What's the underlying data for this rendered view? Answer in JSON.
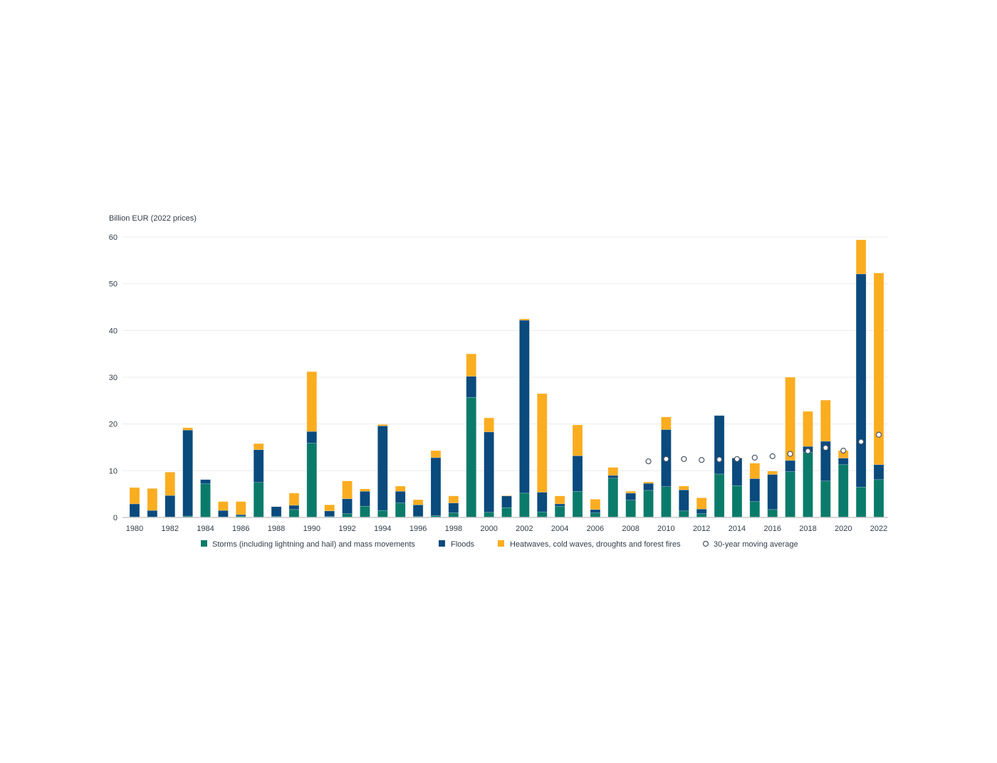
{
  "chart_data": {
    "type": "bar",
    "stacked": true,
    "title": "",
    "ylabel": "Billion EUR (2022 prices)",
    "xlabel": "",
    "ylim": [
      0,
      60
    ],
    "yticks": [
      0,
      10,
      20,
      30,
      40,
      50,
      60
    ],
    "grid": true,
    "legend_position": "bottom",
    "categories": [
      1980,
      1981,
      1982,
      1983,
      1984,
      1985,
      1986,
      1987,
      1988,
      1989,
      1990,
      1991,
      1992,
      1993,
      1994,
      1995,
      1996,
      1997,
      1998,
      1999,
      2000,
      2001,
      2002,
      2003,
      2004,
      2005,
      2006,
      2007,
      2008,
      2009,
      2010,
      2011,
      2012,
      2013,
      2014,
      2015,
      2016,
      2017,
      2018,
      2019,
      2020,
      2021,
      2022
    ],
    "xtick_labels": [
      "1980",
      "1982",
      "1984",
      "1986",
      "1988",
      "1990",
      "1992",
      "1994",
      "1996",
      "1998",
      "2000",
      "2002",
      "2004",
      "2006",
      "2008",
      "2010",
      "2012",
      "2014",
      "2016",
      "2018",
      "2020",
      "2022"
    ],
    "series": [
      {
        "name": "Storms (including lightning and hail) and mass movements",
        "color": "#0a7b6a",
        "values": [
          0.1,
          0.1,
          0.1,
          0.3,
          7.2,
          0.1,
          0.3,
          7.5,
          0.2,
          1.7,
          15.9,
          0.2,
          0.8,
          2.4,
          1.5,
          3.1,
          0.2,
          0.4,
          1.0,
          25.7,
          1.1,
          2.1,
          5.2,
          1.2,
          2.4,
          5.6,
          1.0,
          8.4,
          3.7,
          5.8,
          6.6,
          1.4,
          0.8,
          9.3,
          6.8,
          3.4,
          1.7,
          9.8,
          13.9,
          7.8,
          11.3,
          6.5,
          8.1
        ]
      },
      {
        "name": "Floods",
        "color": "#0a4a7d",
        "values": [
          2.8,
          1.4,
          4.6,
          18.4,
          0.9,
          1.4,
          0.3,
          7.0,
          2.1,
          0.9,
          2.5,
          1.2,
          3.2,
          3.2,
          18.1,
          2.5,
          2.5,
          12.4,
          2.1,
          4.5,
          17.2,
          2.5,
          37.0,
          4.2,
          0.5,
          7.6,
          0.7,
          0.6,
          1.5,
          1.5,
          12.2,
          4.5,
          1.0,
          12.5,
          5.9,
          4.9,
          7.5,
          2.4,
          1.3,
          8.5,
          1.4,
          45.6,
          3.2
        ]
      },
      {
        "name": "Heatwaves, cold waves, droughts and forest fires",
        "color": "#fbad20",
        "values": [
          3.5,
          4.7,
          5.0,
          0.5,
          0.0,
          1.9,
          2.8,
          1.3,
          0.0,
          2.6,
          12.8,
          1.3,
          3.8,
          0.5,
          0.3,
          1.1,
          1.1,
          1.5,
          1.5,
          4.8,
          3.0,
          0.1,
          0.3,
          21.1,
          1.7,
          6.6,
          2.2,
          1.7,
          0.4,
          0.3,
          2.7,
          0.8,
          2.4,
          0.0,
          0.1,
          3.3,
          0.7,
          17.8,
          7.5,
          8.8,
          1.6,
          7.3,
          41.0
        ]
      }
    ],
    "moving_average": {
      "name": "30-year moving average",
      "x": [
        2009,
        2010,
        2011,
        2012,
        2013,
        2014,
        2015,
        2016,
        2017,
        2018,
        2019,
        2020,
        2021,
        2022
      ],
      "values": [
        12.0,
        12.5,
        12.5,
        12.3,
        12.4,
        12.5,
        12.8,
        13.1,
        13.6,
        14.2,
        14.9,
        14.3,
        16.2,
        17.7
      ]
    }
  }
}
